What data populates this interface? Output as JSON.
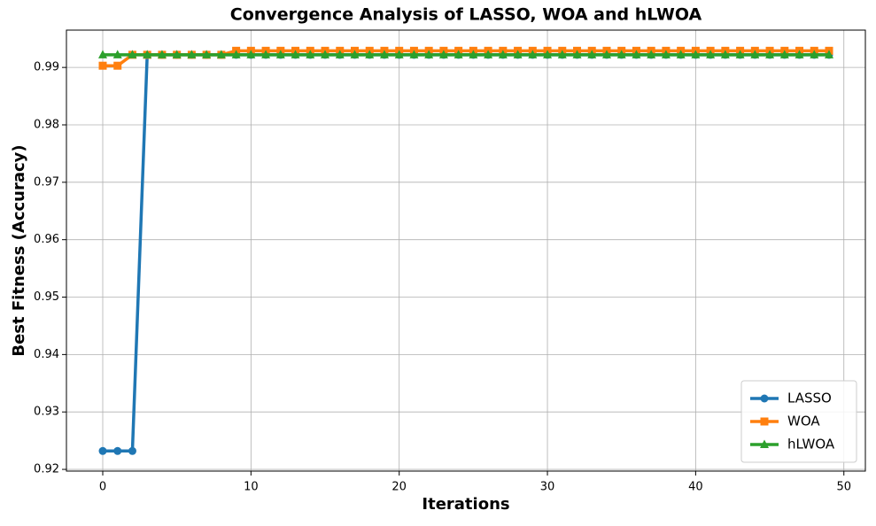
{
  "chart_data": {
    "type": "line",
    "title": "Convergence Analysis of LASSO, WOA and hLWOA",
    "x_label": "Iterations",
    "y_label": "Best Fitness (Accuracy)",
    "x": [
      0,
      1,
      2,
      3,
      4,
      5,
      6,
      7,
      8,
      9,
      10,
      11,
      12,
      13,
      14,
      15,
      16,
      17,
      18,
      19,
      20,
      21,
      22,
      23,
      24,
      25,
      26,
      27,
      28,
      29,
      30,
      31,
      32,
      33,
      34,
      35,
      36,
      37,
      38,
      39,
      40,
      41,
      42,
      43,
      44,
      45,
      46,
      47,
      48,
      49
    ],
    "series": [
      {
        "name": "LASSO",
        "color": "#1f77b4",
        "marker": "circle",
        "values": [
          0.9232,
          0.9232,
          0.9232,
          0.9922,
          0.9922,
          0.9922,
          0.9922,
          0.9922,
          0.9922,
          0.9922,
          0.9922,
          0.9922,
          0.9922,
          0.9922,
          0.9922,
          0.9922,
          0.9922,
          0.9922,
          0.9922,
          0.9922,
          0.9922,
          0.9922,
          0.9922,
          0.9922,
          0.9922,
          0.9922,
          0.9922,
          0.9922,
          0.9922,
          0.9922,
          0.9922,
          0.9922,
          0.9922,
          0.9922,
          0.9922,
          0.9922,
          0.9922,
          0.9922,
          0.9922,
          0.9922,
          0.9922,
          0.9922,
          0.9922,
          0.9922,
          0.9922,
          0.9922,
          0.9922,
          0.9922,
          0.9922,
          0.9922
        ]
      },
      {
        "name": "WOA",
        "color": "#ff7f0e",
        "marker": "square",
        "values": [
          0.9903,
          0.9903,
          0.9922,
          0.9922,
          0.9922,
          0.9922,
          0.9922,
          0.9922,
          0.9922,
          0.9929,
          0.9929,
          0.9929,
          0.9929,
          0.9929,
          0.9929,
          0.9929,
          0.9929,
          0.9929,
          0.9929,
          0.9929,
          0.9929,
          0.9929,
          0.9929,
          0.9929,
          0.9929,
          0.9929,
          0.9929,
          0.9929,
          0.9929,
          0.9929,
          0.9929,
          0.9929,
          0.9929,
          0.9929,
          0.9929,
          0.9929,
          0.9929,
          0.9929,
          0.9929,
          0.9929,
          0.9929,
          0.9929,
          0.9929,
          0.9929,
          0.9929,
          0.9929,
          0.9929,
          0.9929,
          0.9929,
          0.9929
        ]
      },
      {
        "name": "hLWOA",
        "color": "#2ca02c",
        "marker": "triangle",
        "values": [
          0.9922,
          0.9922,
          0.9922,
          0.9922,
          0.9922,
          0.9922,
          0.9922,
          0.9922,
          0.9922,
          0.9922,
          0.9922,
          0.9922,
          0.9922,
          0.9922,
          0.9922,
          0.9922,
          0.9922,
          0.9922,
          0.9922,
          0.9922,
          0.9922,
          0.9922,
          0.9922,
          0.9922,
          0.9922,
          0.9922,
          0.9922,
          0.9922,
          0.9922,
          0.9922,
          0.9922,
          0.9922,
          0.9922,
          0.9922,
          0.9922,
          0.9922,
          0.9922,
          0.9922,
          0.9922,
          0.9922,
          0.9922,
          0.9922,
          0.9922,
          0.9922,
          0.9922,
          0.9922,
          0.9922,
          0.9922,
          0.9922,
          0.9922
        ]
      }
    ],
    "xlim": [
      -2.45,
      51.45
    ],
    "xticks": [
      0,
      10,
      20,
      30,
      40,
      50
    ],
    "ylim": [
      0.9197,
      0.9965
    ],
    "yticks": [
      0.92,
      0.93,
      0.94,
      0.95,
      0.96,
      0.97,
      0.98,
      0.99
    ],
    "grid": true,
    "legend": "lower right"
  }
}
